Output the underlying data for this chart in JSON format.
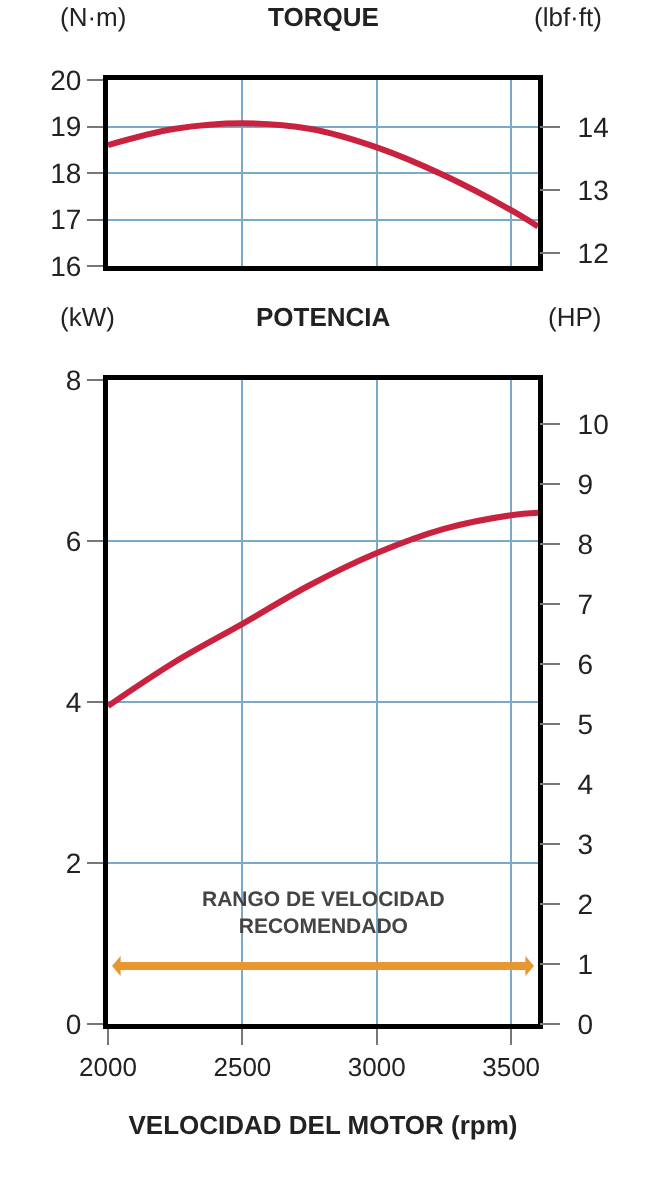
{
  "chart_data": [
    {
      "type": "line",
      "title": "TORQUE",
      "ylabel": "(N·m)",
      "y2label": "(lbf·ft)",
      "x": [
        2000,
        2250,
        2500,
        2750,
        3000,
        3250,
        3500,
        3600
      ],
      "series": [
        {
          "color": "#c8223e",
          "values": [
            18.6,
            18.95,
            19.07,
            18.95,
            18.55,
            17.95,
            17.2,
            16.85
          ]
        }
      ],
      "xlim": [
        2000,
        3600
      ],
      "xticks": [
        2000,
        2500,
        3000,
        3500
      ],
      "ylim": [
        16,
        20
      ],
      "yticks": [
        16,
        17,
        18,
        19,
        20
      ],
      "y2lim": [
        11.8,
        14.75
      ],
      "y2ticks": [
        12,
        13,
        14
      ],
      "grid": true,
      "tick_labels": "y"
    },
    {
      "type": "line",
      "title": "POTENCIA",
      "ylabel": "(kW)",
      "y2label": "(HP)",
      "xlabel": "VELOCIDAD DEL MOTOR (rpm)",
      "x": [
        2000,
        2250,
        2500,
        2750,
        3000,
        3250,
        3500,
        3600
      ],
      "series": [
        {
          "color": "#c8223e",
          "values": [
            3.95,
            4.5,
            4.97,
            5.45,
            5.85,
            6.15,
            6.32,
            6.35
          ]
        }
      ],
      "xlim": [
        2000,
        3600
      ],
      "xticks": [
        2000,
        2500,
        3000,
        3500
      ],
      "ylim": [
        0,
        8
      ],
      "yticks": [
        0,
        2,
        4,
        6,
        8
      ],
      "y2lim": [
        0,
        10.73
      ],
      "y2ticks": [
        0,
        1,
        2,
        3,
        4,
        5,
        6,
        7,
        8,
        9,
        10
      ],
      "grid": true,
      "annotations": [
        "RANGO DE VELOCIDAD\nRECOMENDADO"
      ]
    }
  ]
}
